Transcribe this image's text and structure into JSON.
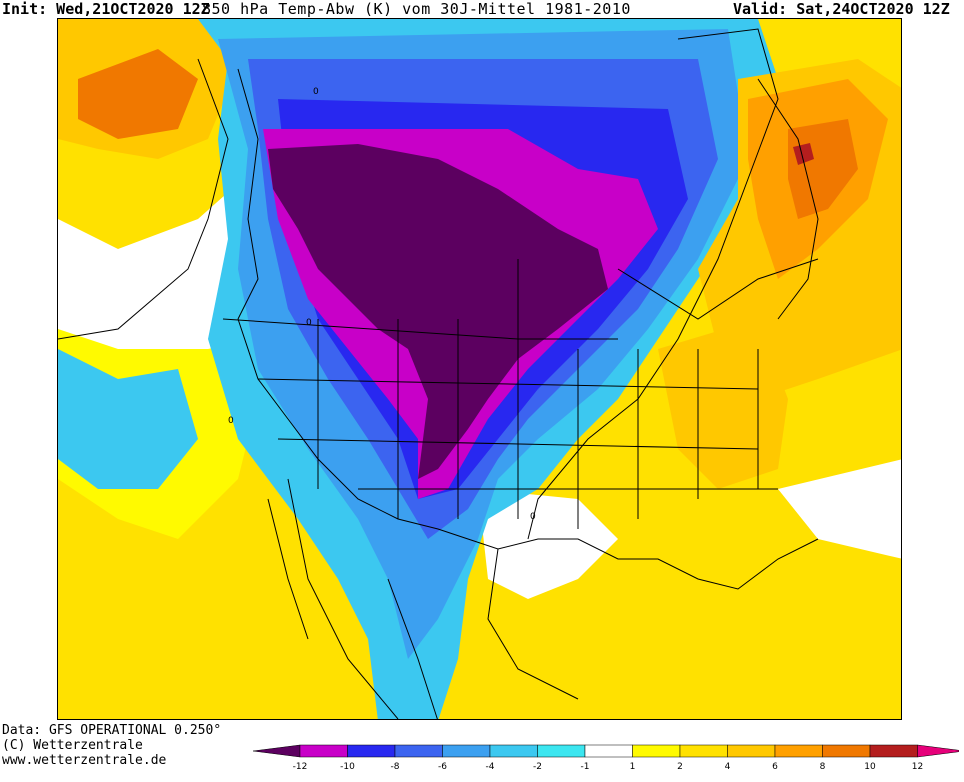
{
  "header": {
    "init_label": "Init: Wed,21OCT2020 12Z",
    "title": "850 hPa Temp-Abw (K) vom 30J-Mittel 1981-2010",
    "valid_label": "Valid: Sat,24OCT2020 12Z"
  },
  "footer": {
    "data_source": "Data: GFS OPERATIONAL 0.250°",
    "copyright": "(C) Wetterzentrale",
    "website": "www.wetterzentrale.de"
  },
  "colorbar": {
    "ticks": [
      "-12",
      "-10",
      "-8",
      "-6",
      "-4",
      "-2",
      "-1",
      "1",
      "2",
      "4",
      "6",
      "8",
      "10",
      "12"
    ],
    "colors": {
      "lt_minus12": "#5c0060",
      "minus12_to_minus10": "#c800c8",
      "minus10_to_minus8": "#2828f0",
      "minus8_to_minus6": "#3c64f0",
      "minus6_to_minus4": "#3ca0f0",
      "minus4_to_minus2": "#3cc8f0",
      "minus2_to_minus1": "#3ce6f0",
      "minus1_to_1": "#ffffff",
      "one_to_2": "#fffa00",
      "two_to_4": "#ffe100",
      "four_to_6": "#ffc800",
      "six_to_8": "#ffa000",
      "eight_to_10": "#f07800",
      "ten_to_12": "#b41e1e",
      "gt_12": "#e6007a"
    }
  },
  "map": {
    "contour_label": "0"
  }
}
